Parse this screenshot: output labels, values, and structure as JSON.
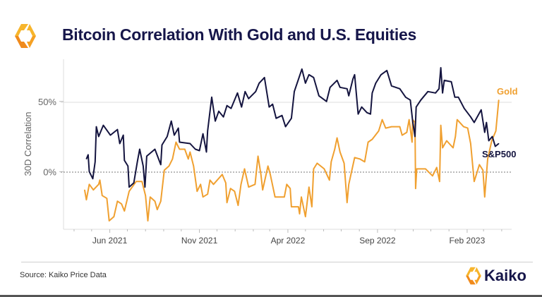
{
  "header": {
    "title": "Bitcoin Correlation With Gold and U.S. Equities"
  },
  "footer": {
    "source": "Source: Kaiko Price Data",
    "brand": "Kaiko"
  },
  "colors": {
    "sp500": "#14143f",
    "gold": "#f0a030",
    "title": "#16164a",
    "grid": "#dcdcdc"
  },
  "chart_data": {
    "type": "line",
    "title": "Bitcoin Correlation With Gold and U.S. Equities",
    "xlabel": "",
    "ylabel": "30D Correlation",
    "xlim": [
      "2021-03-14",
      "2023-04-18"
    ],
    "ylim": [
      -41,
      80
    ],
    "x_ticks": [
      {
        "date": "2021-06-01",
        "label": "Jun 2021"
      },
      {
        "date": "2021-11-01",
        "label": "Nov 2021"
      },
      {
        "date": "2022-04-01",
        "label": "Apr 2022"
      },
      {
        "date": "2022-09-01",
        "label": "Sep 2022"
      },
      {
        "date": "2023-02-01",
        "label": "Feb 2023"
      }
    ],
    "y_ticks": [
      {
        "value": 0,
        "label": "0%"
      },
      {
        "value": 50,
        "label": "50%"
      }
    ],
    "grid": "horizontal at 50%; dotted zero line",
    "legend": "inline labels at line ends (right)",
    "series": [
      {
        "name": "S&P500",
        "color": "#14143f",
        "points": [
          [
            "2021-04-22",
            9
          ],
          [
            "2021-04-25",
            12
          ],
          [
            "2021-04-27",
            0
          ],
          [
            "2021-05-03",
            -5
          ],
          [
            "2021-05-07",
            7
          ],
          [
            "2021-05-09",
            32
          ],
          [
            "2021-05-13",
            25
          ],
          [
            "2021-05-21",
            33
          ],
          [
            "2021-06-02",
            26
          ],
          [
            "2021-06-14",
            30
          ],
          [
            "2021-06-18",
            20
          ],
          [
            "2021-06-24",
            26
          ],
          [
            "2021-06-26",
            8
          ],
          [
            "2021-07-02",
            4
          ],
          [
            "2021-07-04",
            -11
          ],
          [
            "2021-07-12",
            -8
          ],
          [
            "2021-07-18",
            7
          ],
          [
            "2021-07-22",
            16
          ],
          [
            "2021-07-28",
            4
          ],
          [
            "2021-07-31",
            -11
          ],
          [
            "2021-08-03",
            11
          ],
          [
            "2021-08-17",
            16
          ],
          [
            "2021-08-27",
            5
          ],
          [
            "2021-08-29",
            19
          ],
          [
            "2021-09-07",
            25
          ],
          [
            "2021-09-14",
            36
          ],
          [
            "2021-09-19",
            26
          ],
          [
            "2021-09-26",
            31
          ],
          [
            "2021-09-28",
            21
          ],
          [
            "2021-10-16",
            20
          ],
          [
            "2021-10-25",
            16
          ],
          [
            "2021-11-01",
            15
          ],
          [
            "2021-11-07",
            27
          ],
          [
            "2021-11-13",
            14
          ],
          [
            "2021-11-15",
            29
          ],
          [
            "2021-11-22",
            53
          ],
          [
            "2021-11-28",
            36
          ],
          [
            "2021-12-04",
            43
          ],
          [
            "2021-12-12",
            39
          ],
          [
            "2021-12-18",
            47
          ],
          [
            "2021-12-25",
            45
          ],
          [
            "2022-01-05",
            56
          ],
          [
            "2022-01-12",
            46
          ],
          [
            "2022-01-18",
            57
          ],
          [
            "2022-01-24",
            52
          ],
          [
            "2022-02-05",
            57
          ],
          [
            "2022-02-11",
            63
          ],
          [
            "2022-02-20",
            67
          ],
          [
            "2022-02-28",
            46
          ],
          [
            "2022-03-06",
            48
          ],
          [
            "2022-03-12",
            38
          ],
          [
            "2022-03-22",
            40
          ],
          [
            "2022-03-28",
            32
          ],
          [
            "2022-04-07",
            38
          ],
          [
            "2022-04-12",
            57
          ],
          [
            "2022-04-25",
            73
          ],
          [
            "2022-05-01",
            63
          ],
          [
            "2022-05-07",
            69
          ],
          [
            "2022-05-15",
            67
          ],
          [
            "2022-05-24",
            54
          ],
          [
            "2022-06-06",
            50
          ],
          [
            "2022-06-12",
            60
          ],
          [
            "2022-06-24",
            65
          ],
          [
            "2022-06-29",
            60
          ],
          [
            "2022-07-11",
            59
          ],
          [
            "2022-07-14",
            54
          ],
          [
            "2022-07-21",
            66
          ],
          [
            "2022-07-24",
            69
          ],
          [
            "2022-07-30",
            41
          ],
          [
            "2022-08-05",
            46
          ],
          [
            "2022-08-14",
            42
          ],
          [
            "2022-08-20",
            41
          ],
          [
            "2022-08-23",
            56
          ],
          [
            "2022-08-29",
            63
          ],
          [
            "2022-09-07",
            69
          ],
          [
            "2022-09-17",
            72
          ],
          [
            "2022-09-25",
            61
          ],
          [
            "2022-10-09",
            59
          ],
          [
            "2022-10-19",
            53
          ],
          [
            "2022-10-27",
            51
          ],
          [
            "2022-10-31",
            36
          ],
          [
            "2022-11-04",
            25
          ],
          [
            "2022-11-06",
            46
          ],
          [
            "2022-11-14",
            51
          ],
          [
            "2022-11-26",
            57
          ],
          [
            "2022-12-09",
            56
          ],
          [
            "2022-12-15",
            59
          ],
          [
            "2022-12-18",
            74
          ],
          [
            "2022-12-21",
            56
          ],
          [
            "2022-12-24",
            65
          ],
          [
            "2023-01-05",
            64
          ],
          [
            "2023-01-11",
            53
          ],
          [
            "2023-01-17",
            53
          ],
          [
            "2023-01-27",
            45
          ],
          [
            "2023-02-07",
            39
          ],
          [
            "2023-02-13",
            35
          ],
          [
            "2023-02-25",
            44
          ],
          [
            "2023-03-03",
            28
          ],
          [
            "2023-03-06",
            35
          ],
          [
            "2023-03-10",
            22
          ],
          [
            "2023-03-16",
            25
          ],
          [
            "2023-03-21",
            18
          ],
          [
            "2023-03-27",
            20
          ]
        ]
      },
      {
        "name": "Gold",
        "color": "#f0a030",
        "points": [
          [
            "2021-04-19",
            -13
          ],
          [
            "2021-04-22",
            -20
          ],
          [
            "2021-04-27",
            -9
          ],
          [
            "2021-05-04",
            -13
          ],
          [
            "2021-05-13",
            -9
          ],
          [
            "2021-05-15",
            -6
          ],
          [
            "2021-05-19",
            -17
          ],
          [
            "2021-05-27",
            -19
          ],
          [
            "2021-05-31",
            -35
          ],
          [
            "2021-06-08",
            -32
          ],
          [
            "2021-06-14",
            -21
          ],
          [
            "2021-06-21",
            -23
          ],
          [
            "2021-06-26",
            -28
          ],
          [
            "2021-07-04",
            -14
          ],
          [
            "2021-07-16",
            -7
          ],
          [
            "2021-07-26",
            -7
          ],
          [
            "2021-08-01",
            -17
          ],
          [
            "2021-08-05",
            -35
          ],
          [
            "2021-08-09",
            -18
          ],
          [
            "2021-08-17",
            -21
          ],
          [
            "2021-08-21",
            -27
          ],
          [
            "2021-08-27",
            -21
          ],
          [
            "2021-09-02",
            1
          ],
          [
            "2021-09-10",
            4
          ],
          [
            "2021-09-16",
            9
          ],
          [
            "2021-09-22",
            21
          ],
          [
            "2021-09-28",
            16
          ],
          [
            "2021-10-07",
            16
          ],
          [
            "2021-10-13",
            9
          ],
          [
            "2021-10-16",
            14
          ],
          [
            "2021-10-22",
            4
          ],
          [
            "2021-10-28",
            -14
          ],
          [
            "2021-11-03",
            -9
          ],
          [
            "2021-11-07",
            -18
          ],
          [
            "2021-11-15",
            -16
          ],
          [
            "2021-11-19",
            -6
          ],
          [
            "2021-11-25",
            -9
          ],
          [
            "2021-12-10",
            -2
          ],
          [
            "2021-12-16",
            -8
          ],
          [
            "2021-12-18",
            -22
          ],
          [
            "2021-12-24",
            -12
          ],
          [
            "2021-12-31",
            -14
          ],
          [
            "2022-01-06",
            -24
          ],
          [
            "2022-01-11",
            -9
          ],
          [
            "2022-01-17",
            2
          ],
          [
            "2022-01-24",
            -11
          ],
          [
            "2022-02-04",
            -9
          ],
          [
            "2022-02-09",
            11
          ],
          [
            "2022-02-14",
            -2
          ],
          [
            "2022-02-17",
            -13
          ],
          [
            "2022-02-26",
            4
          ],
          [
            "2022-03-02",
            -2
          ],
          [
            "2022-03-10",
            -18
          ],
          [
            "2022-03-26",
            -18
          ],
          [
            "2022-03-30",
            -9
          ],
          [
            "2022-04-05",
            -12
          ],
          [
            "2022-04-07",
            -25
          ],
          [
            "2022-04-19",
            -25
          ],
          [
            "2022-04-21",
            -30
          ],
          [
            "2022-04-24",
            -18
          ],
          [
            "2022-05-01",
            -32
          ],
          [
            "2022-05-07",
            -11
          ],
          [
            "2022-05-12",
            -25
          ],
          [
            "2022-05-15",
            2
          ],
          [
            "2022-05-21",
            6
          ],
          [
            "2022-06-02",
            2
          ],
          [
            "2022-06-11",
            -6
          ],
          [
            "2022-06-14",
            7
          ],
          [
            "2022-06-20",
            16
          ],
          [
            "2022-06-24",
            24
          ],
          [
            "2022-06-29",
            14
          ],
          [
            "2022-07-06",
            6
          ],
          [
            "2022-07-11",
            -22
          ],
          [
            "2022-07-14",
            -9
          ],
          [
            "2022-07-24",
            10
          ],
          [
            "2022-08-02",
            9
          ],
          [
            "2022-08-10",
            7
          ],
          [
            "2022-08-16",
            21
          ],
          [
            "2022-08-23",
            23
          ],
          [
            "2022-09-03",
            29
          ],
          [
            "2022-09-09",
            37
          ],
          [
            "2022-09-15",
            31
          ],
          [
            "2022-09-25",
            32
          ],
          [
            "2022-10-09",
            32
          ],
          [
            "2022-10-13",
            26
          ],
          [
            "2022-10-21",
            28
          ],
          [
            "2022-10-25",
            37
          ],
          [
            "2022-10-30",
            21
          ],
          [
            "2022-10-31",
            37
          ],
          [
            "2022-11-04",
            35
          ],
          [
            "2022-11-05",
            -12
          ],
          [
            "2022-11-07",
            2
          ],
          [
            "2022-11-22",
            2
          ],
          [
            "2022-12-04",
            -3
          ],
          [
            "2022-12-11",
            3
          ],
          [
            "2022-12-16",
            -7
          ],
          [
            "2022-12-18",
            33
          ],
          [
            "2022-12-21",
            17
          ],
          [
            "2022-12-28",
            22
          ],
          [
            "2023-01-08",
            17
          ],
          [
            "2023-01-12",
            25
          ],
          [
            "2023-01-15",
            37
          ],
          [
            "2023-01-26",
            32
          ],
          [
            "2023-02-02",
            31
          ],
          [
            "2023-02-07",
            20
          ],
          [
            "2023-02-13",
            -7
          ],
          [
            "2023-02-22",
            5
          ],
          [
            "2023-02-28",
            1
          ],
          [
            "2023-03-03",
            -18
          ],
          [
            "2023-03-08",
            9
          ],
          [
            "2023-03-15",
            22
          ],
          [
            "2023-03-22",
            29
          ],
          [
            "2023-03-27",
            51
          ]
        ]
      }
    ]
  }
}
